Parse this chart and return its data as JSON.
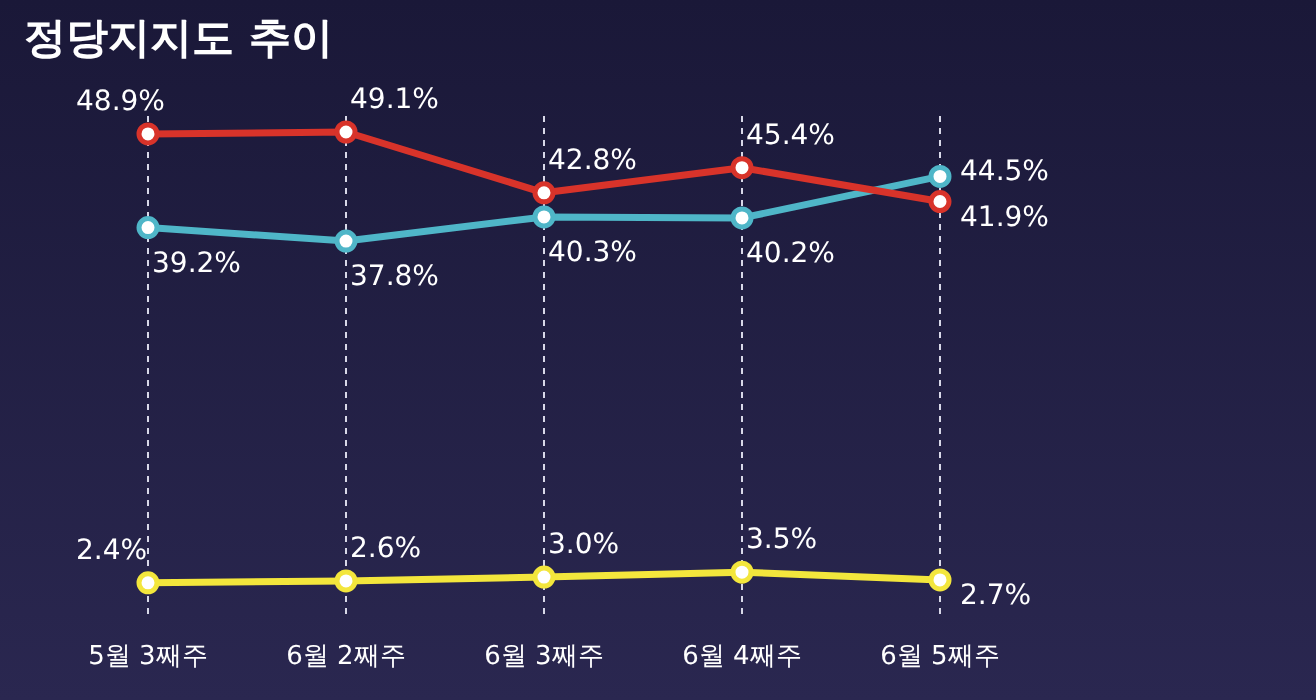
{
  "chart_data": {
    "type": "line",
    "title": "정당지지도 추이",
    "categories": [
      "5월 3째주",
      "6월 2째주",
      "6월 3째주",
      "6월 4째주",
      "6월 5째주"
    ],
    "series": [
      {
        "color": "#4fb6c8",
        "values": [
          39.2,
          37.8,
          40.3,
          40.2,
          44.5
        ],
        "value_labels": [
          "39.2%",
          "37.8%",
          "40.3%",
          "40.2%",
          "44.5%"
        ]
      },
      {
        "color": "#d8332a",
        "values": [
          48.9,
          49.1,
          42.8,
          45.4,
          41.9
        ],
        "value_labels": [
          "48.9%",
          "49.1%",
          "42.8%",
          "45.4%",
          "41.9%"
        ]
      },
      {
        "color": "#f3e63c",
        "values": [
          2.4,
          2.6,
          3.0,
          3.5,
          2.7
        ],
        "value_labels": [
          "2.4%",
          "2.6%",
          "3.0%",
          "3.5%",
          "2.7%"
        ]
      }
    ],
    "grid": "x",
    "marker": "circle",
    "line_style": "solid"
  }
}
